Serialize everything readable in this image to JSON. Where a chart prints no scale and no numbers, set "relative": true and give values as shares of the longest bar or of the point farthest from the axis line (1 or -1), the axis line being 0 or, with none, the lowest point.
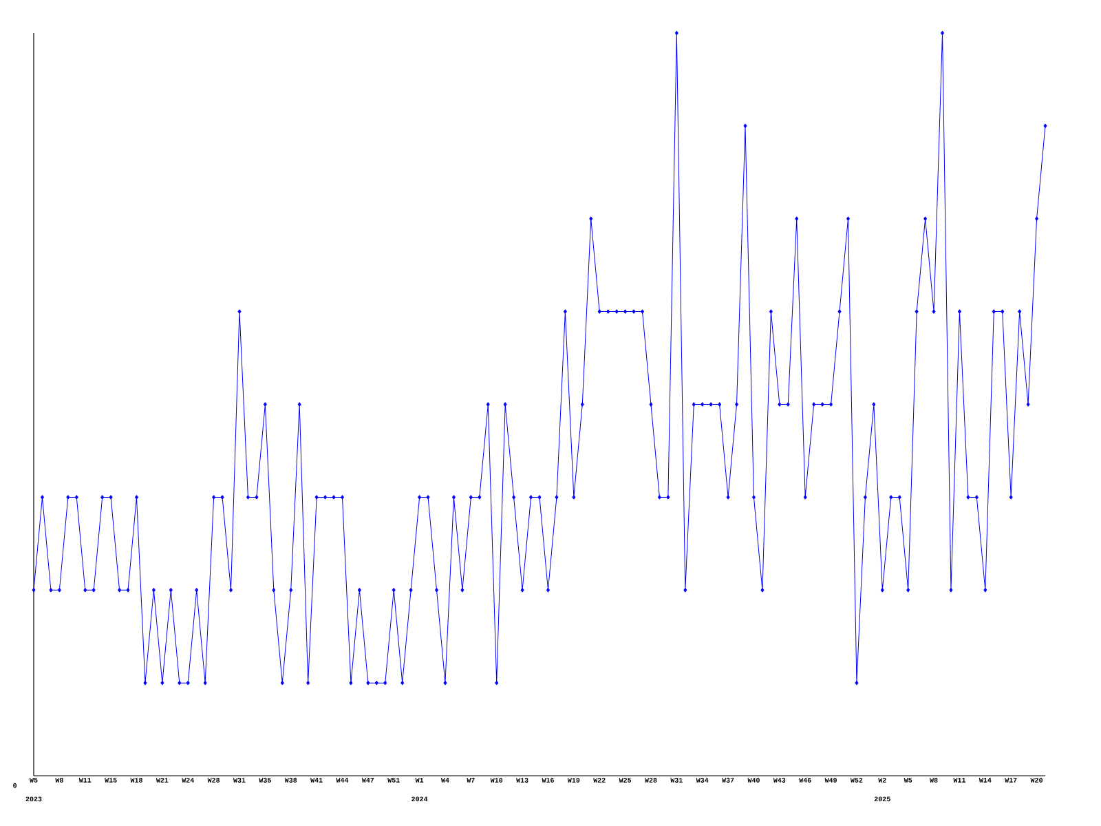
{
  "chart_data": {
    "type": "line",
    "relative": true,
    "color": "#0000ff",
    "marker": "diamond",
    "categories": [
      "W5",
      null,
      null,
      "W8",
      null,
      null,
      "W11",
      null,
      null,
      "W15",
      null,
      null,
      "W18",
      null,
      null,
      "W21",
      null,
      null,
      "W24",
      null,
      null,
      "W28",
      null,
      null,
      "W31",
      null,
      null,
      "W35",
      null,
      null,
      "W38",
      null,
      null,
      "W41",
      null,
      null,
      "W44",
      null,
      null,
      "W47",
      null,
      null,
      "W51",
      null,
      null,
      "W1",
      null,
      null,
      "W4",
      null,
      null,
      "W7",
      null,
      null,
      "W10",
      null,
      null,
      "W13",
      null,
      null,
      "W16",
      null,
      null,
      "W19",
      null,
      null,
      "W22",
      null,
      null,
      "W25",
      null,
      null,
      "W28",
      null,
      null,
      "W31",
      null,
      null,
      "W34",
      null,
      null,
      "W37",
      null,
      null,
      "W40",
      null,
      null,
      "W43",
      null,
      null,
      "W46",
      null,
      null,
      "W49",
      null,
      null,
      "W52",
      null,
      null,
      "W2",
      null,
      null,
      "W5",
      null,
      null,
      "W8",
      null,
      null,
      "W11",
      null,
      null,
      "W14",
      null,
      null,
      "W17",
      null,
      null,
      "W20",
      null
    ],
    "values": [
      0.25,
      0.375,
      0.25,
      0.25,
      0.375,
      0.375,
      0.25,
      0.25,
      0.375,
      0.375,
      0.25,
      0.25,
      0.375,
      0.125,
      0.25,
      0.125,
      0.25,
      0.125,
      0.125,
      0.25,
      0.125,
      0.375,
      0.375,
      0.25,
      0.625,
      0.375,
      0.375,
      0.5,
      0.25,
      0.125,
      0.25,
      0.5,
      0.125,
      0.375,
      0.375,
      0.375,
      0.375,
      0.125,
      0.25,
      0.125,
      0.125,
      0.125,
      0.25,
      0.125,
      0.25,
      0.375,
      0.375,
      0.25,
      0.125,
      0.375,
      0.25,
      0.375,
      0.375,
      0.5,
      0.125,
      0.5,
      0.375,
      0.25,
      0.375,
      0.375,
      0.25,
      0.375,
      0.625,
      0.375,
      0.5,
      0.75,
      0.625,
      0.625,
      0.625,
      0.625,
      0.625,
      0.625,
      0.5,
      0.375,
      0.375,
      1,
      0.25,
      0.5,
      0.5,
      0.5,
      0.5,
      0.375,
      0.5,
      0.875,
      0.375,
      0.25,
      0.625,
      0.5,
      0.5,
      0.75,
      0.375,
      0.5,
      0.5,
      0.5,
      0.625,
      0.75,
      0.125,
      0.375,
      0.5,
      0.25,
      0.375,
      0.375,
      0.25,
      0.625,
      0.75,
      0.625,
      1,
      0.25,
      0.625,
      0.375,
      0.375,
      0.25,
      0.625,
      0.625,
      0.375,
      0.625,
      0.5,
      0.75,
      0.875
    ],
    "annotations": [
      "0",
      "2023",
      "2024",
      "2025"
    ]
  }
}
